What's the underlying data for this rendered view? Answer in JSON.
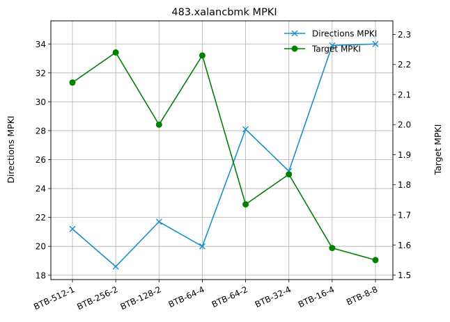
{
  "chart_data": {
    "type": "line",
    "title": "483.xalancbmk MPKI",
    "categories": [
      "BTB-512-1",
      "BTB-256-2",
      "BTB-128-2",
      "BTB-64-4",
      "BTB-64-2",
      "BTB-32-4",
      "BTB-16-4",
      "BTB-8-8"
    ],
    "y_left": {
      "label": "Directions MPKI",
      "ylim": [
        17.7,
        35.6
      ],
      "ticks": [
        18,
        20,
        22,
        24,
        26,
        28,
        30,
        32,
        34
      ]
    },
    "y_right": {
      "label": "Target MPKI",
      "ylim": [
        1.485,
        2.345
      ],
      "ticks": [
        1.5,
        1.6,
        1.7,
        1.8,
        1.9,
        2.0,
        2.1,
        2.2,
        2.3
      ]
    },
    "series": [
      {
        "name": "Directions MPKI",
        "axis": "left",
        "color": "#1a8fc9",
        "marker": "x",
        "values": [
          21.2,
          18.6,
          21.7,
          20.0,
          28.1,
          25.2,
          33.9,
          34.0
        ]
      },
      {
        "name": "Target MPKI",
        "axis": "right",
        "color": "#008000",
        "marker": "circle",
        "values": [
          2.14,
          2.24,
          2.0,
          2.23,
          1.735,
          1.835,
          1.59,
          1.55
        ]
      }
    ],
    "grid": true,
    "legend_position": "top-right",
    "xtick_rotation": 25
  }
}
